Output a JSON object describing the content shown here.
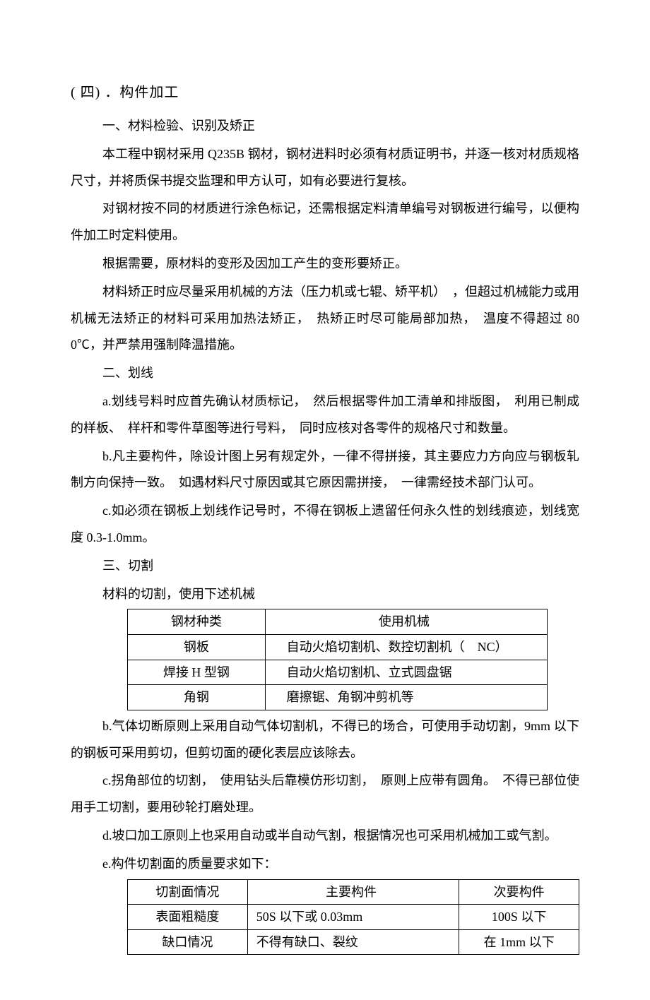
{
  "title": "( 四) ．构件加工",
  "h1": "一、材料检验、识别及矫正",
  "p1": "本工程中钢材采用 Q235B 钢材，钢材进料时必须有材质证明书，并逐一核对材质规格尺寸，并将质保书提交监理和甲方认可，如有必要进行复核。",
  "p2": "对钢材按不同的材质进行涂色标记，还需根据定料清单编号对钢板进行编号，以便构件加工时定料使用。",
  "p3": "根据需要，原材料的变形及因加工产生的变形要矫正。",
  "p4": "材料矫正时应尽量采用机械的方法（压力机或七辊、矫平机）　，但超过机械能力或用机械无法矫正的材料可采用加热法矫正，　热矫正时尽可能局部加热，　温度不得超过 800℃，并严禁用强制降温措施。",
  "h2": "二、划线",
  "p5": "a.划线号料时应首先确认材质标记，　然后根据零件加工清单和排版图，　利用已制成的样板、　样杆和零件草图等进行号料，　同时应核对各零件的规格尺寸和数量。",
  "p6": "b.凡主要构件，除设计图上另有规定外，一律不得拼接，其主要应力方向应与钢板轧制方向保持一致。　如遇材料尺寸原因或其它原因需拼接，　一律需经技术部门认可。",
  "p7": "c.如必须在钢板上划线作记号时，不得在钢板上遗留任何永久性的划线痕迹，划线宽度 0.3-1.0mm。",
  "h3": "三、切割",
  "p8": "材料的切割，使用下述机械",
  "t1": {
    "h": [
      "钢材种类",
      "使用机械"
    ],
    "r": [
      [
        "钢板",
        "自动火焰切割机、数控切割机（　NC）"
      ],
      [
        "焊接 H 型钢",
        "自动火焰切割机、立式圆盘锯"
      ],
      [
        "角钢",
        "磨擦锯、角钢冲剪机等"
      ]
    ]
  },
  "p9": "b.气体切断原则上采用自动气体切割机，不得已的场合，可使用手动切割，9mm 以下的钢板可采用剪切，但剪切面的硬化表层应该除去。",
  "p10": "c.拐角部位的切割，　使用钻头后靠模仿形切割，　原则上应带有圆角。　不得已部位使用手工切割，要用砂轮打磨处理。",
  "p11": "d.坡口加工原则上也采用自动或半自动气割，根据情况也可采用机械加工或气割。",
  "p12": "e.构件切割面的质量要求如下：",
  "t2": {
    "h": [
      "切割面情况",
      "主要构件",
      "次要构件"
    ],
    "r": [
      [
        "表面粗糙度",
        "50S 以下或 0.03mm",
        "100S 以下"
      ],
      [
        "缺口情况",
        "不得有缺口、裂纹",
        "在 1mm 以下"
      ]
    ]
  }
}
